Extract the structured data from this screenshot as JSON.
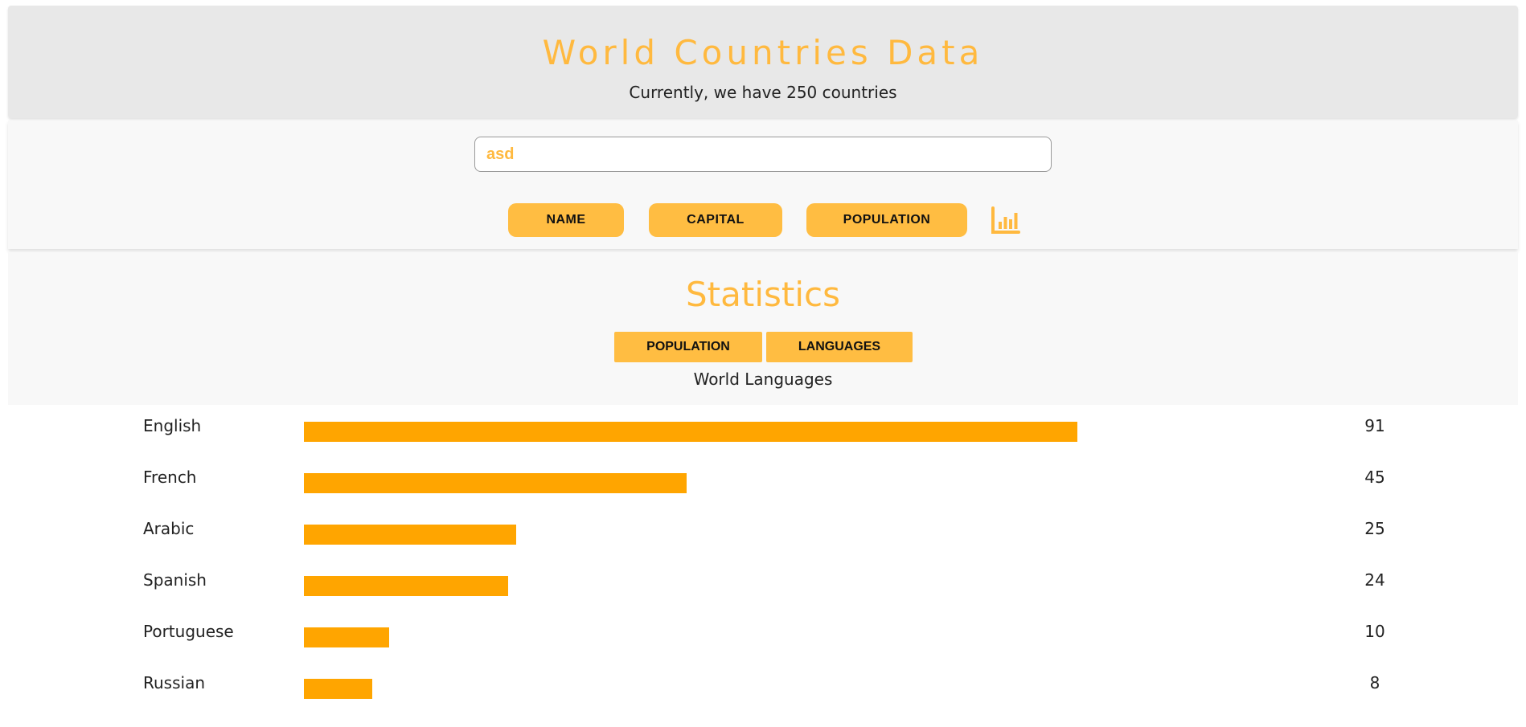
{
  "header": {
    "title": "World Countries Data",
    "subtitle": "Currently, we have 250 countries"
  },
  "search": {
    "value": "asd"
  },
  "sort_buttons": {
    "name": "NAME",
    "capital": "CAPITAL",
    "population": "POPULATION"
  },
  "chart_toggle_icon": "bar-chart-icon",
  "stats": {
    "title": "Statistics",
    "tabs": {
      "population": "POPULATION",
      "languages": "LANGUAGES"
    },
    "chart_title": "World Languages"
  },
  "colors": {
    "accent": "#ffb93f",
    "button": "#ffbd42",
    "bar": "#ffa500"
  },
  "chart_data": {
    "type": "bar",
    "orientation": "horizontal",
    "title": "World Languages",
    "categories": [
      "English",
      "French",
      "Arabic",
      "Spanish",
      "Portuguese",
      "Russian"
    ],
    "values": [
      91,
      45,
      25,
      24,
      10,
      8
    ]
  }
}
